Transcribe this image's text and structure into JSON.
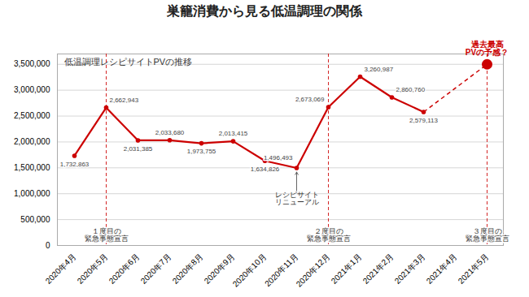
{
  "chart_data": {
    "type": "line",
    "title": "巣籠消費から見る低温調理の関係",
    "subtitle": "低温調理レシピサイトPVの推移",
    "categories": [
      "2020年4月",
      "2020年5月",
      "2020年6月",
      "2020年7月",
      "2020年8月",
      "2020年9月",
      "2020年10月",
      "2020年11月",
      "2020年12月",
      "2021年1月",
      "2021年2月",
      "2021年3月",
      "2021年4月",
      "2021年5月"
    ],
    "values": [
      1732863,
      2662943,
      2031385,
      2033680,
      1973755,
      2013415,
      1634826,
      1496493,
      2673069,
      3260987,
      2860760,
      2579113,
      null,
      3500000
    ],
    "value_labels": [
      "1,732,863",
      "2,662,943",
      "2,031,385",
      "2,033,680",
      "1,973,755",
      "2,013,415",
      "1,634,826",
      "1,496,493",
      "2,673,069",
      "3,260,987",
      "2,860,760",
      "2,579,113",
      null,
      null
    ],
    "data_labels": true,
    "color": "#CC0000",
    "marker": "circle",
    "line_style": "solid",
    "ylim": [
      0,
      3700000
    ],
    "yticks": [
      0,
      {
        "value": 500000,
        "label": "500,000"
      },
      {
        "value": 1000000,
        "label": "1,000,000"
      },
      {
        "value": 1500000,
        "label": "1,500,000"
      },
      {
        "value": 2000000,
        "label": "2,000,000"
      },
      {
        "value": 2500000,
        "label": "2,500,000"
      },
      {
        "value": 3000000,
        "label": "3,000,000"
      },
      {
        "value": 3500000,
        "label": "3,500,000"
      }
    ],
    "grid": true,
    "annotations": [
      {
        "text": "過去最高\nPVの予感？",
        "x": "2021年5月",
        "y": 3500000
      },
      {
        "text": "レシピサイト\nリニューアル",
        "x": "2020年11月",
        "y": 1496493
      },
      {
        "text": "１度目の\n緊急事態宣言",
        "x": "2020年5月"
      },
      {
        "text": "２度目の\n緊急事態宣言",
        "x": "2020年12月"
      },
      {
        "text": "３度目の\n緊急事態宣言",
        "x": "2021年5月"
      }
    ]
  }
}
